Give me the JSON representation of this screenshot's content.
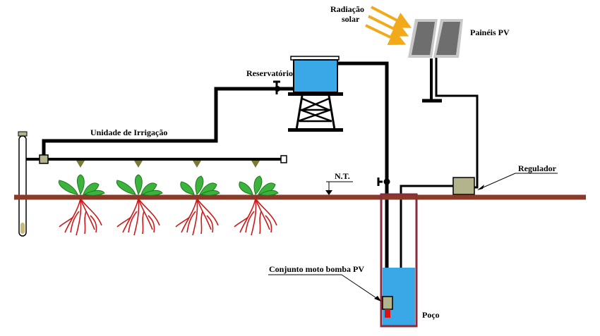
{
  "labels": {
    "solar_radiation_line1": "Radiação",
    "solar_radiation_line2": "solar",
    "pv_panels": "Painéis PV",
    "reservoir": "Reservatório",
    "irrigation_unit": "Unidade de Irrigação",
    "ground_level": "N.T.",
    "regulator": "Regulador",
    "pump_set": "Conjunto moto bomba PV",
    "well": "Poço"
  },
  "colors": {
    "pipe": "#000000",
    "ground": "#8b3a2a",
    "well_outline": "#8b2a3a",
    "water": "#3aa8e6",
    "reservoir_water": "#3aa8e6",
    "sun_rays": "#f2a91a",
    "pv_panel": "#707070",
    "pv_frame": "#c8c8c8",
    "roots": "#cc1a1a",
    "leaves": "#3cb33c",
    "leaves_dark": "#1e7a1e",
    "regulator": "#b4b48c",
    "pump": "#b4b48c",
    "pump_motor": "#dd1111",
    "sprinkler": "#7a7a3a"
  },
  "plants": {
    "count": 4
  },
  "sprinklers": {
    "count": 4
  },
  "sun_rays": {
    "count": 3
  }
}
